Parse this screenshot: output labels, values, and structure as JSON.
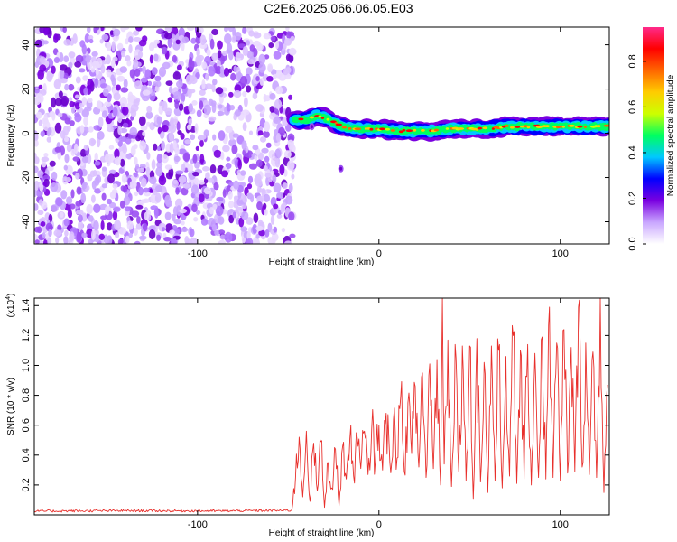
{
  "title": "C2E6.2025.066.06.05.E03",
  "chart_data": [
    {
      "type": "heatmap",
      "xlabel": "Height of straight line (km)",
      "ylabel": "Frequency (Hz)",
      "xlim": [
        -190,
        127
      ],
      "ylim": [
        -50,
        48
      ],
      "x_ticks": [
        -100,
        0,
        100
      ],
      "x_tick_labels": [
        "-100",
        "0",
        "100"
      ],
      "y_ticks": [
        -40,
        -20,
        0,
        20,
        40
      ],
      "y_tick_labels": [
        "-40",
        "-20",
        "0",
        "20",
        "40"
      ],
      "noise_region_x": [
        -190,
        -47
      ],
      "signal_trace": {
        "x": [
          -47,
          -40,
          -35,
          -30,
          -25,
          -20,
          -15,
          -10,
          -5,
          0,
          10,
          20,
          30,
          40,
          50,
          60,
          70,
          80,
          90,
          100,
          110,
          120,
          127
        ],
        "freq": [
          6,
          6,
          8,
          7,
          5,
          3,
          2,
          2,
          2,
          2,
          1,
          1,
          1,
          2,
          2,
          2,
          3,
          3,
          3,
          3,
          3,
          3,
          3
        ]
      },
      "isolated_points": [
        {
          "x": -37,
          "y": 3
        },
        {
          "x": -21,
          "y": -16
        }
      ],
      "grid": false,
      "colorbar": {
        "label": "Normalized spectral amplitude",
        "range": [
          0,
          0.95
        ],
        "ticks": [
          0.0,
          0.2,
          0.4,
          0.6,
          0.8
        ],
        "tick_labels": [
          "0.0",
          "0.2",
          "0.4",
          "0.6",
          "0.8"
        ],
        "colors": [
          "#ffffff",
          "#c9a6ff",
          "#7a00e0",
          "#0000ff",
          "#00c8ff",
          "#00ff60",
          "#ccff00",
          "#ffcc00",
          "#ff6600",
          "#ff0000",
          "#ff2a8a"
        ]
      }
    },
    {
      "type": "line",
      "xlabel": "Height of straight line (km)",
      "ylabel": "SNR (10 * v/v)",
      "y_multiplier_label": "(x10",
      "y_multiplier_exp": "4",
      "y_multiplier_close": ")",
      "xlim": [
        -190,
        127
      ],
      "ylim": [
        0,
        14500
      ],
      "x_ticks": [
        -100,
        0,
        100
      ],
      "x_tick_labels": [
        "-100",
        "0",
        "100"
      ],
      "y_ticks": [
        2000,
        4000,
        6000,
        8000,
        10000,
        12000,
        14000
      ],
      "y_tick_labels": [
        "0.2",
        "0.4",
        "0.6",
        "0.8",
        "1.0",
        "1.2",
        "1.4"
      ],
      "grid": false,
      "line_color": "#e8302c",
      "series": [
        {
          "x": [
            -190,
            -140,
            -90,
            -48,
            -46,
            -44,
            -42,
            -40,
            -38,
            -36,
            -34,
            -32,
            -30,
            -28,
            -26,
            -24,
            -22,
            -20,
            -18,
            -16,
            -14,
            -12,
            -10,
            -8,
            -6,
            -4,
            -2,
            0,
            2,
            4,
            6,
            8,
            10,
            12,
            14,
            16,
            18,
            20,
            22,
            24,
            26,
            28,
            30,
            32,
            34,
            35,
            36,
            38,
            40,
            42,
            44,
            46,
            48,
            50,
            52,
            54,
            56,
            58,
            60,
            62,
            64,
            66,
            68,
            70,
            72,
            74,
            76,
            78,
            80,
            82,
            84,
            86,
            88,
            90,
            92,
            94,
            96,
            98,
            100,
            102,
            104,
            106,
            108,
            110,
            112,
            114,
            116,
            118,
            120,
            122,
            124,
            126
          ],
          "values": [
            250,
            280,
            260,
            300,
            2500,
            5200,
            1200,
            5600,
            900,
            4800,
            1600,
            4900,
            500,
            3500,
            1800,
            4400,
            600,
            4600,
            2400,
            5100,
            2600,
            5200,
            3100,
            5600,
            2700,
            5800,
            3600,
            6000,
            3000,
            6800,
            3500,
            6400,
            3800,
            7900,
            2900,
            7500,
            4100,
            8600,
            3200,
            9500,
            2500,
            10100,
            3100,
            10400,
            2000,
            14500,
            3400,
            11700,
            1900,
            11400,
            2900,
            11300,
            2300,
            11300,
            1100,
            11800,
            2200,
            10200,
            1500,
            11300,
            2300,
            11000,
            1800,
            10600,
            2600,
            12000,
            2100,
            11000,
            2400,
            11400,
            2000,
            10800,
            2500,
            11900,
            2400,
            13900,
            2500,
            11500,
            2300,
            12400,
            2800,
            11200,
            2900,
            13900,
            3200,
            11500,
            2700,
            10900,
            2500,
            14500,
            1500,
            8700
          ]
        }
      ]
    }
  ]
}
